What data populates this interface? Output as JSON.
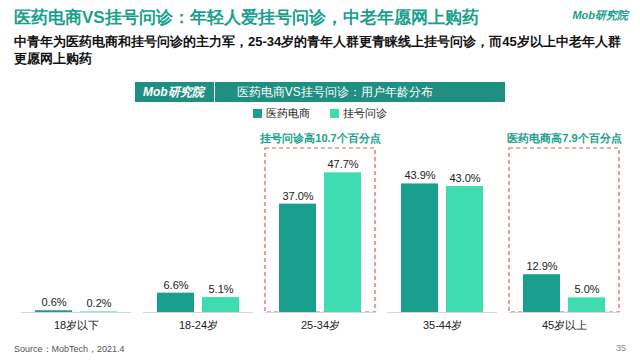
{
  "title": "医药电商VS挂号问诊：年轻人爱挂号问诊，中老年愿网上购药",
  "subtitle": "中青年为医药电商和挂号问诊的主力军，25-34岁的青年人群更青睐线上挂号问诊，而45岁以上中老年人群更愿网上购药",
  "brand": "Mob研究院",
  "source": "Source：MobTech，2021.4",
  "page": "35",
  "chart_data": {
    "type": "bar",
    "title": "医药电商VS挂号问诊：用户年龄分布",
    "categories": [
      "18岁以下",
      "18-24岁",
      "25-34岁",
      "35-44岁",
      "45岁以上"
    ],
    "series": [
      {
        "name": "医药电商",
        "color": "#1a9e8e",
        "values": [
          0.6,
          6.6,
          37.0,
          43.9,
          12.9
        ],
        "value_labels": [
          "0.6%",
          "6.6%",
          "37.0%",
          "43.9%",
          "12.9%"
        ]
      },
      {
        "name": "挂号问诊",
        "color": "#3fdcb2",
        "values": [
          0.2,
          5.1,
          47.7,
          43.0,
          5.0
        ],
        "value_labels": [
          "0.2%",
          "5.1%",
          "47.7%",
          "43.0%",
          "5.0%"
        ]
      }
    ],
    "ylim": [
      0,
      56
    ],
    "tick_labels": "x",
    "data_labels": true,
    "legend": "top",
    "annotations": [
      {
        "text": "挂号问诊高10.7个百分点",
        "category": "25-34岁"
      },
      {
        "text": "医药电商高7.9个百分点",
        "category": "45岁以上"
      }
    ]
  }
}
